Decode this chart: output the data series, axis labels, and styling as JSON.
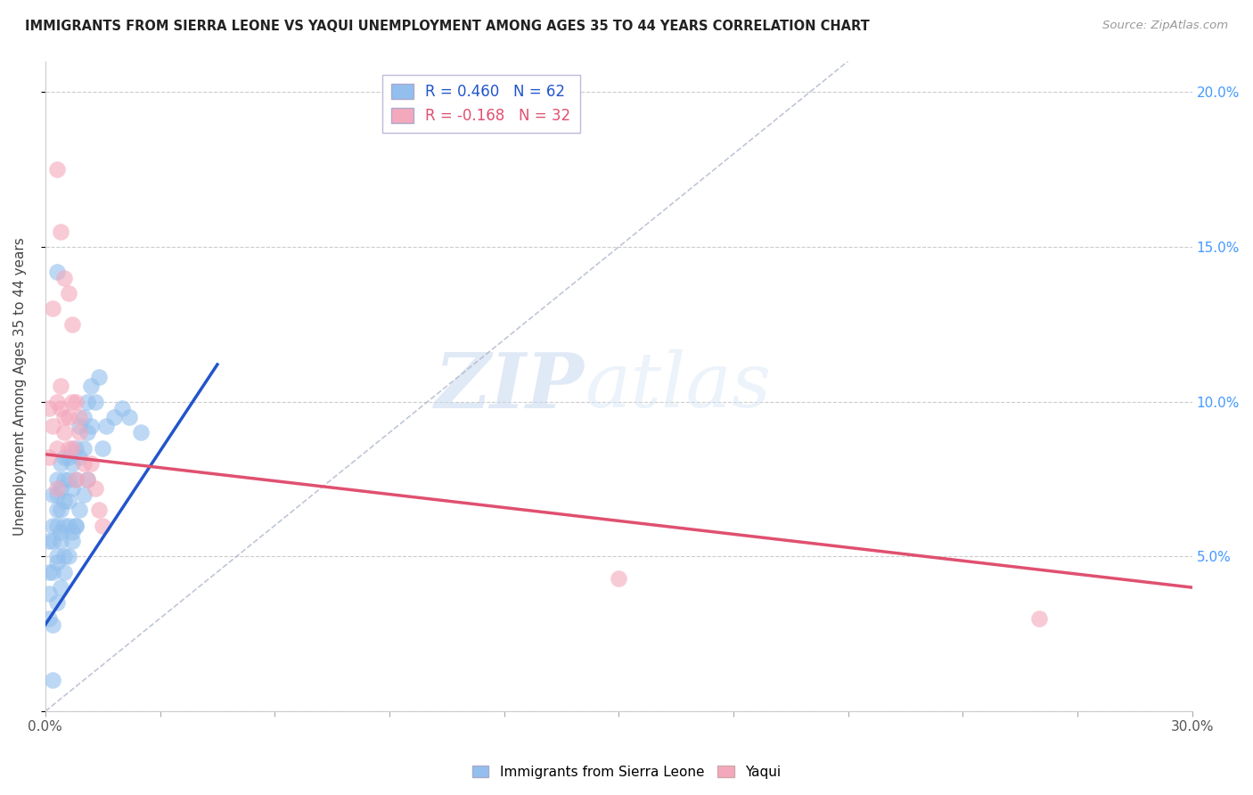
{
  "title": "IMMIGRANTS FROM SIERRA LEONE VS YAQUI UNEMPLOYMENT AMONG AGES 35 TO 44 YEARS CORRELATION CHART",
  "source": "Source: ZipAtlas.com",
  "xlabel_blue": "Immigrants from Sierra Leone",
  "xlabel_pink": "Yaqui",
  "ylabel": "Unemployment Among Ages 35 to 44 years",
  "xlim": [
    0.0,
    0.3
  ],
  "ylim": [
    0.0,
    0.21
  ],
  "xticks": [
    0.0,
    0.03,
    0.06,
    0.09,
    0.12,
    0.15,
    0.18,
    0.21,
    0.24,
    0.27,
    0.3
  ],
  "xticklabels_show": {
    "0": "0.0%",
    "10": "30.0%"
  },
  "yticks_left": [
    0.0,
    0.05,
    0.1,
    0.15,
    0.2
  ],
  "yticklabels_right": [
    "",
    "5.0%",
    "10.0%",
    "15.0%",
    "20.0%"
  ],
  "blue_R": 0.46,
  "blue_N": 62,
  "pink_R": -0.168,
  "pink_N": 32,
  "blue_color": "#92bfed",
  "pink_color": "#f4a8bc",
  "blue_line_color": "#2255cc",
  "pink_line_color": "#e05070",
  "ref_line_color": "#b0b8cc",
  "watermark_zip": "ZIP",
  "watermark_atlas": "atlas",
  "blue_scatter_x": [
    0.001,
    0.001,
    0.001,
    0.002,
    0.002,
    0.002,
    0.002,
    0.003,
    0.003,
    0.003,
    0.003,
    0.003,
    0.003,
    0.004,
    0.004,
    0.004,
    0.004,
    0.004,
    0.005,
    0.005,
    0.005,
    0.005,
    0.005,
    0.006,
    0.006,
    0.006,
    0.006,
    0.007,
    0.007,
    0.007,
    0.008,
    0.008,
    0.008,
    0.009,
    0.009,
    0.01,
    0.01,
    0.011,
    0.011,
    0.012,
    0.012,
    0.013,
    0.014,
    0.015,
    0.016,
    0.018,
    0.02,
    0.022,
    0.025,
    0.001,
    0.002,
    0.003,
    0.004,
    0.005,
    0.006,
    0.007,
    0.008,
    0.009,
    0.01,
    0.011,
    0.003,
    0.002
  ],
  "blue_scatter_y": [
    0.055,
    0.045,
    0.038,
    0.06,
    0.045,
    0.055,
    0.07,
    0.05,
    0.06,
    0.07,
    0.075,
    0.065,
    0.048,
    0.058,
    0.065,
    0.072,
    0.08,
    0.055,
    0.06,
    0.068,
    0.075,
    0.082,
    0.05,
    0.068,
    0.075,
    0.082,
    0.06,
    0.072,
    0.08,
    0.058,
    0.075,
    0.085,
    0.06,
    0.082,
    0.092,
    0.085,
    0.095,
    0.09,
    0.1,
    0.092,
    0.105,
    0.1,
    0.108,
    0.085,
    0.092,
    0.095,
    0.098,
    0.095,
    0.09,
    0.03,
    0.028,
    0.035,
    0.04,
    0.045,
    0.05,
    0.055,
    0.06,
    0.065,
    0.07,
    0.075,
    0.142,
    0.01
  ],
  "pink_scatter_x": [
    0.001,
    0.001,
    0.002,
    0.002,
    0.003,
    0.003,
    0.003,
    0.004,
    0.004,
    0.005,
    0.005,
    0.006,
    0.006,
    0.007,
    0.007,
    0.008,
    0.009,
    0.01,
    0.011,
    0.012,
    0.013,
    0.014,
    0.015,
    0.003,
    0.004,
    0.005,
    0.006,
    0.007,
    0.008,
    0.009,
    0.26,
    0.15
  ],
  "pink_scatter_y": [
    0.098,
    0.082,
    0.13,
    0.092,
    0.1,
    0.085,
    0.072,
    0.098,
    0.105,
    0.09,
    0.095,
    0.095,
    0.085,
    0.085,
    0.1,
    0.075,
    0.09,
    0.08,
    0.075,
    0.08,
    0.072,
    0.065,
    0.06,
    0.175,
    0.155,
    0.14,
    0.135,
    0.125,
    0.1,
    0.095,
    0.03,
    0.043
  ],
  "blue_trend_x": [
    0.0,
    0.045
  ],
  "blue_trend_y": [
    0.028,
    0.112
  ],
  "pink_trend_x": [
    0.0,
    0.3
  ],
  "pink_trend_y": [
    0.083,
    0.04
  ],
  "ref_line_x": [
    0.0,
    0.21
  ],
  "ref_line_y": [
    0.0,
    0.21
  ]
}
